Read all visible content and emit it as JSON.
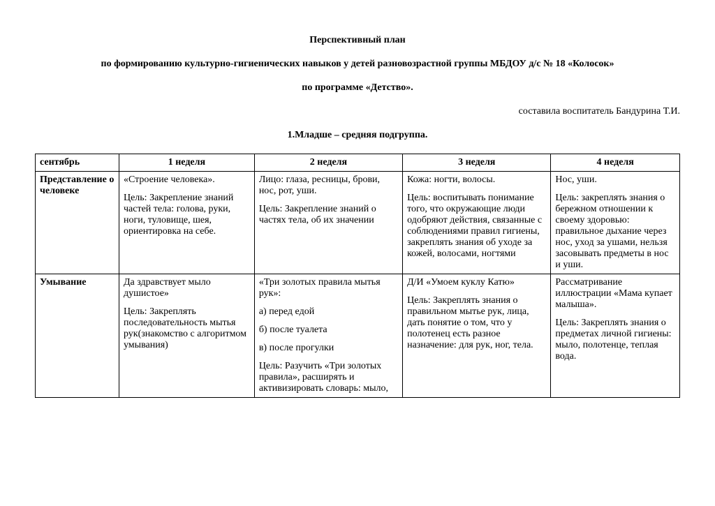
{
  "header": {
    "title1": "Перспективный план",
    "title2": "по формированию культурно-гигиенических навыков у детей разновозрастной группы МБДОУ д/с № 18 «Колосок»",
    "title3": "по программе «Детство».",
    "author": "составила воспитатель Бандурина Т.И.",
    "subtitle": "1.Младше – средняя подгруппа."
  },
  "table": {
    "columns": [
      "сентябрь",
      "1 неделя",
      "2 неделя",
      "3 неделя",
      "4 неделя"
    ],
    "col_widths": [
      "13%",
      "21%",
      "23%",
      "23%",
      "20%"
    ],
    "border_color": "#000000",
    "font_family": "Times New Roman",
    "font_size_pt": 11,
    "rows": [
      {
        "label": "Представление о человеке",
        "cells": [
          {
            "p1": "«Строение человека».",
            "p2": "Цель: Закрепление знаний частей тела: голова, руки, ноги, туловище, шея, ориентировка на себе."
          },
          {
            "p1": "Лицо: глаза, ресницы, брови, нос, рот, уши.",
            "p2": "Цель: Закрепление знаний о частях тела, об их значении"
          },
          {
            "p1": "Кожа: ногти, волосы.",
            "p2": "Цель: воспитывать понимание того, что окружающие люди одобряют действия, связанные с соблюдениями правил гигиены, закреплять знания об уходе за кожей, волосами, ногтями"
          },
          {
            "p1": "Нос, уши.",
            "p2": "Цель: закреплять знания о бережном отношении к своему здоровью: правильное дыхание через нос, уход за ушами, нельзя засовывать предметы в нос и уши."
          }
        ]
      },
      {
        "label": "Умывание",
        "cells": [
          {
            "p1": "Да здравствует мыло душистое»",
            "p2": "Цель: Закреплять последовательность мытья рук(знакомство с алгоритмом умывания)"
          },
          {
            "p1": "«Три золотых правила мытья рук»:",
            "p2": "а) перед едой",
            "p3": "б) после туалета",
            "p4": "в) после прогулки",
            "p5": "Цель: Разучить «Три золотых правила», расширять и активизировать словарь: мыло,"
          },
          {
            "p1": "Д/И «Умоем куклу Катю»",
            "p2": "Цель: Закреплять знания о правильном мытье рук, лица, дать понятие о том, что у полотенец есть разное назначение: для рук, ног, тела."
          },
          {
            "p1": "Рассматривание иллюстрации «Мама купает малыша».",
            "p2": "Цель: Закреплять знания о предметах личной гигиены: мыло, полотенце, теплая вода."
          }
        ]
      }
    ]
  }
}
